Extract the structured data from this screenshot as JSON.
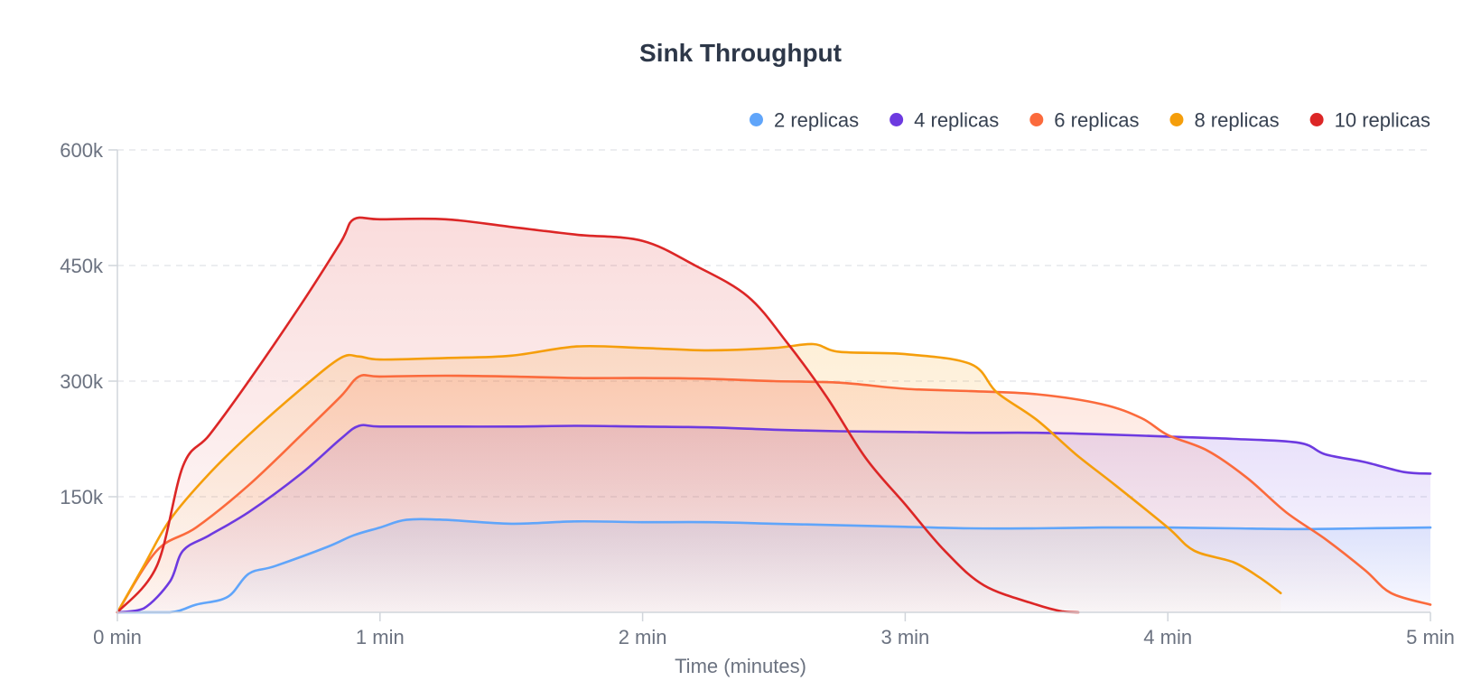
{
  "chart_data": {
    "type": "area",
    "title": "Sink Throughput",
    "xlabel": "Time (minutes)",
    "ylabel": "",
    "xlim": [
      0,
      5
    ],
    "ylim": [
      0,
      600000
    ],
    "x_ticks": [
      0,
      1,
      2,
      3,
      4,
      5
    ],
    "x_tick_labels": [
      "0 min",
      "1 min",
      "2 min",
      "3 min",
      "4 min",
      "5 min"
    ],
    "y_ticks": [
      0,
      150000,
      300000,
      450000,
      600000
    ],
    "y_tick_labels": [
      "",
      "150k",
      "300k",
      "450k",
      "600k"
    ],
    "grid": true,
    "legend_position": "top-right",
    "series": [
      {
        "name": "2 replicas",
        "color": "#60a5fa",
        "points": [
          [
            0,
            0
          ],
          [
            0.2,
            0
          ],
          [
            0.3,
            10000
          ],
          [
            0.42,
            20000
          ],
          [
            0.5,
            50000
          ],
          [
            0.6,
            60000
          ],
          [
            0.8,
            85000
          ],
          [
            0.9,
            100000
          ],
          [
            1.0,
            110000
          ],
          [
            1.1,
            120000
          ],
          [
            1.25,
            120000
          ],
          [
            1.5,
            115000
          ],
          [
            1.75,
            118000
          ],
          [
            2.0,
            117000
          ],
          [
            2.25,
            117000
          ],
          [
            2.5,
            115000
          ],
          [
            2.75,
            113000
          ],
          [
            3.0,
            111000
          ],
          [
            3.25,
            109000
          ],
          [
            3.5,
            109000
          ],
          [
            3.75,
            110000
          ],
          [
            4.0,
            110000
          ],
          [
            4.25,
            109000
          ],
          [
            4.5,
            108000
          ],
          [
            4.75,
            109000
          ],
          [
            5.0,
            110000
          ]
        ]
      },
      {
        "name": "4 replicas",
        "color": "#6d3ae0",
        "points": [
          [
            0,
            0
          ],
          [
            0.1,
            5000
          ],
          [
            0.2,
            40000
          ],
          [
            0.25,
            80000
          ],
          [
            0.35,
            100000
          ],
          [
            0.5,
            130000
          ],
          [
            0.7,
            180000
          ],
          [
            0.85,
            225000
          ],
          [
            0.92,
            242000
          ],
          [
            1.0,
            241000
          ],
          [
            1.25,
            241000
          ],
          [
            1.5,
            241000
          ],
          [
            1.75,
            242000
          ],
          [
            2.0,
            241000
          ],
          [
            2.25,
            240000
          ],
          [
            2.5,
            237000
          ],
          [
            2.75,
            235000
          ],
          [
            3.0,
            234000
          ],
          [
            3.25,
            233000
          ],
          [
            3.5,
            233000
          ],
          [
            3.75,
            231000
          ],
          [
            4.0,
            228000
          ],
          [
            4.25,
            225000
          ],
          [
            4.5,
            220000
          ],
          [
            4.6,
            205000
          ],
          [
            4.75,
            195000
          ],
          [
            4.9,
            182000
          ],
          [
            5.0,
            180000
          ]
        ]
      },
      {
        "name": "6 replicas",
        "color": "#fb6a3c",
        "points": [
          [
            0,
            0
          ],
          [
            0.15,
            80000
          ],
          [
            0.3,
            110000
          ],
          [
            0.5,
            165000
          ],
          [
            0.7,
            230000
          ],
          [
            0.85,
            280000
          ],
          [
            0.92,
            306000
          ],
          [
            1.0,
            306000
          ],
          [
            1.25,
            307000
          ],
          [
            1.5,
            306000
          ],
          [
            1.75,
            304000
          ],
          [
            2.0,
            304000
          ],
          [
            2.25,
            303000
          ],
          [
            2.5,
            300000
          ],
          [
            2.75,
            298000
          ],
          [
            3.0,
            290000
          ],
          [
            3.25,
            287000
          ],
          [
            3.5,
            283000
          ],
          [
            3.75,
            270000
          ],
          [
            3.9,
            252000
          ],
          [
            4.0,
            230000
          ],
          [
            4.15,
            210000
          ],
          [
            4.3,
            175000
          ],
          [
            4.45,
            130000
          ],
          [
            4.6,
            95000
          ],
          [
            4.75,
            55000
          ],
          [
            4.85,
            25000
          ],
          [
            5.0,
            10000
          ]
        ]
      },
      {
        "name": "8 replicas",
        "color": "#f59e0b",
        "points": [
          [
            0,
            0
          ],
          [
            0.1,
            60000
          ],
          [
            0.2,
            120000
          ],
          [
            0.35,
            180000
          ],
          [
            0.5,
            230000
          ],
          [
            0.7,
            290000
          ],
          [
            0.85,
            330000
          ],
          [
            0.92,
            332000
          ],
          [
            1.0,
            328000
          ],
          [
            1.25,
            330000
          ],
          [
            1.5,
            333000
          ],
          [
            1.75,
            345000
          ],
          [
            2.0,
            343000
          ],
          [
            2.25,
            340000
          ],
          [
            2.5,
            343000
          ],
          [
            2.65,
            348000
          ],
          [
            2.75,
            338000
          ],
          [
            3.0,
            335000
          ],
          [
            3.25,
            322000
          ],
          [
            3.35,
            285000
          ],
          [
            3.5,
            250000
          ],
          [
            3.65,
            205000
          ],
          [
            3.8,
            165000
          ],
          [
            4.0,
            110000
          ],
          [
            4.1,
            80000
          ],
          [
            4.25,
            65000
          ],
          [
            4.35,
            45000
          ],
          [
            4.43,
            25000
          ]
        ]
      },
      {
        "name": "10 replicas",
        "color": "#dc2626",
        "points": [
          [
            0,
            0
          ],
          [
            0.15,
            60000
          ],
          [
            0.25,
            190000
          ],
          [
            0.35,
            230000
          ],
          [
            0.5,
            300000
          ],
          [
            0.7,
            400000
          ],
          [
            0.85,
            480000
          ],
          [
            0.9,
            510000
          ],
          [
            1.0,
            510000
          ],
          [
            1.25,
            510000
          ],
          [
            1.5,
            500000
          ],
          [
            1.75,
            490000
          ],
          [
            2.0,
            482000
          ],
          [
            2.2,
            450000
          ],
          [
            2.4,
            410000
          ],
          [
            2.55,
            350000
          ],
          [
            2.7,
            280000
          ],
          [
            2.85,
            200000
          ],
          [
            3.0,
            140000
          ],
          [
            3.15,
            80000
          ],
          [
            3.3,
            35000
          ],
          [
            3.5,
            10000
          ],
          [
            3.6,
            1000
          ],
          [
            3.66,
            0
          ]
        ]
      }
    ]
  }
}
